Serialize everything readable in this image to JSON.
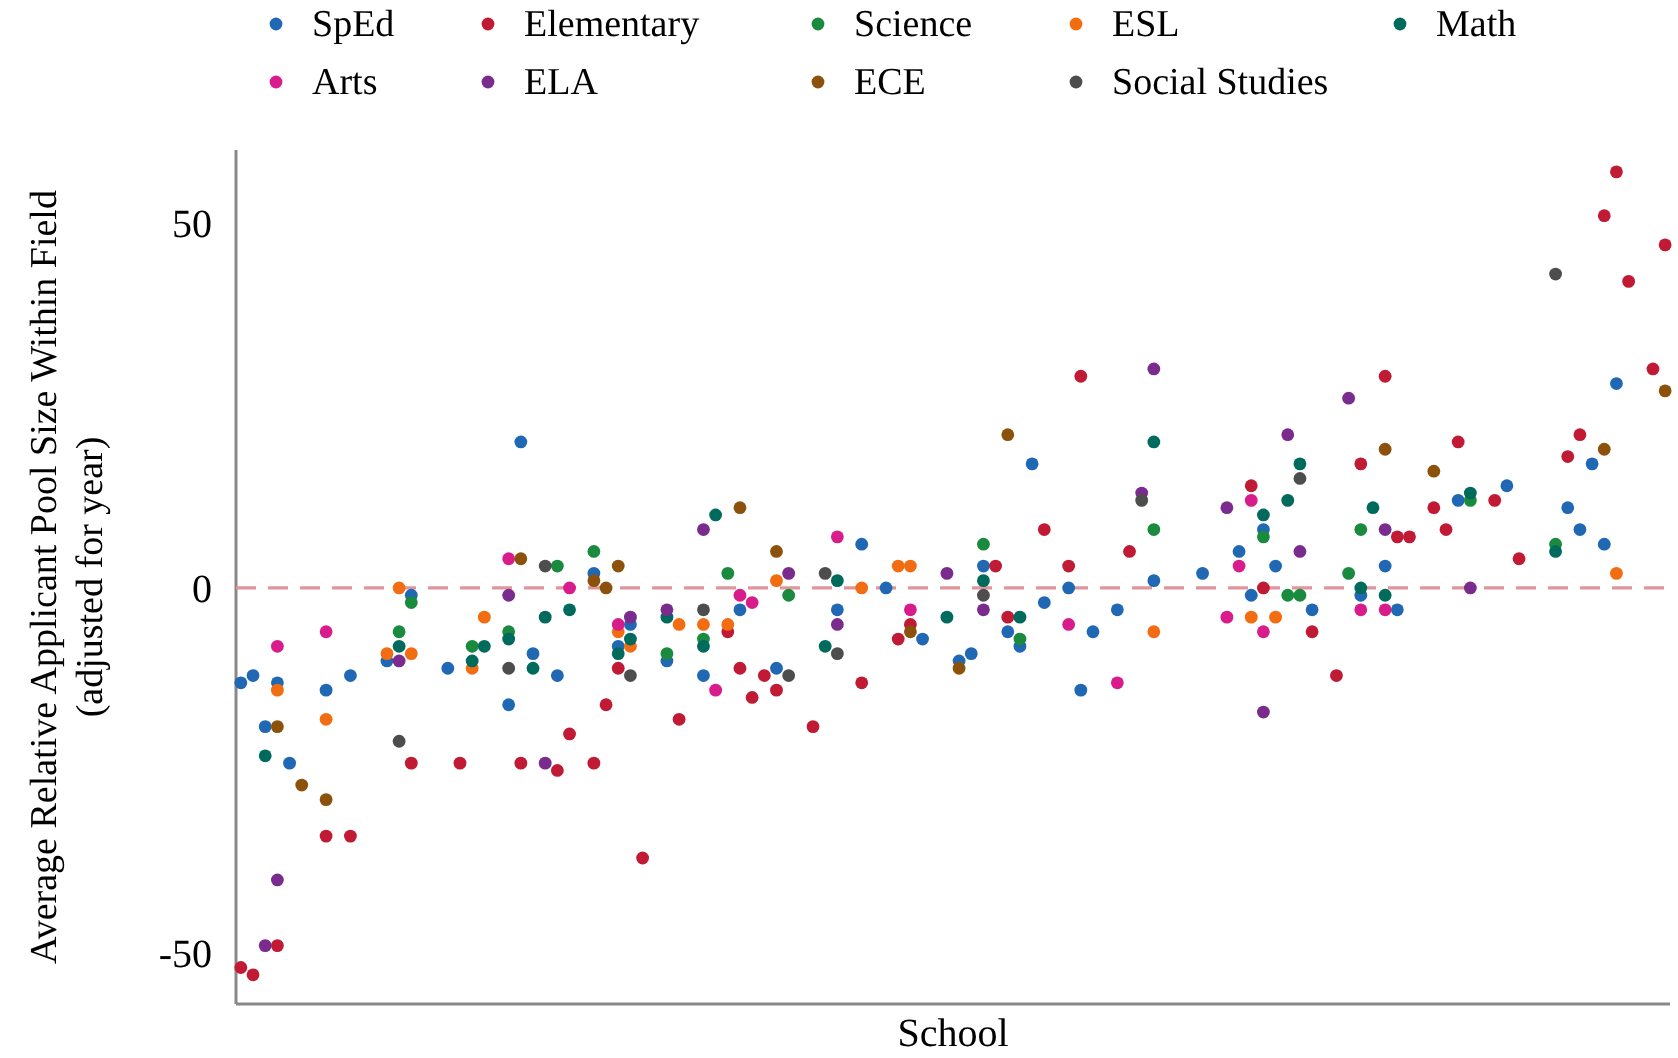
{
  "chart_data": {
    "type": "scatter",
    "xlabel": "School",
    "ylabel": "Average Relative Applicant Pool Size Within Field\n(adjusted for year)",
    "ylim": [
      -57,
      60
    ],
    "yticks": [
      -50,
      0,
      50
    ],
    "tick_labels": "y",
    "legend": "top",
    "marker": "circle",
    "categories": [
      null,
      null,
      null,
      null,
      null,
      null,
      null,
      null,
      null,
      null,
      null,
      null,
      null,
      null,
      null,
      null,
      null,
      null,
      null,
      null,
      null,
      null,
      null,
      null,
      null,
      null,
      null,
      null,
      null,
      null,
      null,
      null,
      null,
      null,
      null,
      null,
      null,
      null,
      null,
      null,
      null,
      null,
      null,
      null,
      null,
      null,
      null,
      null,
      null,
      null,
      null,
      null,
      null,
      null,
      null,
      null,
      null,
      null,
      null,
      null,
      null,
      null,
      null,
      null,
      null,
      null,
      null,
      null,
      null,
      null,
      null,
      null,
      null,
      null,
      null,
      null,
      null,
      null,
      null,
      null,
      null,
      null,
      null,
      null,
      null,
      null,
      null,
      null,
      null,
      null,
      null,
      null,
      null,
      null,
      null,
      null,
      null,
      null,
      null,
      null,
      null,
      null,
      null,
      null,
      null,
      null,
      null,
      null,
      null,
      null,
      null,
      null,
      null,
      null,
      null,
      null,
      null,
      null
    ],
    "ref_lines": [
      {
        "axis": "y",
        "value": 0,
        "color": "#e0959c",
        "line_style": "dashed"
      }
    ],
    "series": [
      {
        "name": "SpEd",
        "color": "#2068b4",
        "values": [
          -13,
          -12,
          -19,
          -13,
          -24,
          null,
          null,
          -14,
          null,
          -12,
          null,
          null,
          -10,
          null,
          -1,
          null,
          null,
          -11,
          null,
          null,
          null,
          null,
          -16,
          20,
          -9,
          null,
          -12,
          null,
          null,
          2,
          null,
          -8,
          -5,
          null,
          null,
          -10,
          null,
          null,
          -12,
          null,
          null,
          -3,
          null,
          null,
          -11,
          null,
          null,
          null,
          null,
          -3,
          null,
          6,
          null,
          0,
          null,
          null,
          -7,
          null,
          null,
          -10,
          -9,
          3,
          null,
          -6,
          -8,
          17,
          -2,
          null,
          0,
          -14,
          -6,
          null,
          -3,
          null,
          null,
          1,
          null,
          null,
          null,
          2,
          null,
          null,
          5,
          -1,
          8,
          3,
          null,
          null,
          -3,
          null,
          null,
          null,
          -1,
          null,
          3,
          -3,
          null,
          null,
          null,
          null,
          12,
          null,
          null,
          null,
          14,
          null,
          null,
          null,
          null,
          11,
          8,
          17,
          6,
          28,
          null,
          null,
          null,
          null
        ]
      },
      {
        "name": "Elementary",
        "color": "#c01a35",
        "values": [
          -52,
          -53,
          null,
          -49,
          null,
          null,
          null,
          -34,
          null,
          -34,
          null,
          null,
          null,
          null,
          -24,
          null,
          null,
          null,
          -24,
          null,
          null,
          null,
          null,
          -24,
          null,
          null,
          -25,
          -20,
          null,
          -24,
          -16,
          -11,
          null,
          -37,
          null,
          null,
          -18,
          null,
          null,
          null,
          -6,
          -11,
          -15,
          -12,
          -14,
          null,
          null,
          -19,
          null,
          null,
          null,
          -13,
          null,
          null,
          -7,
          -5,
          null,
          null,
          null,
          null,
          null,
          null,
          3,
          -4,
          null,
          null,
          8,
          null,
          3,
          29,
          null,
          null,
          null,
          5,
          null,
          null,
          null,
          null,
          null,
          null,
          null,
          null,
          null,
          14,
          0,
          null,
          null,
          null,
          -6,
          null,
          -12,
          null,
          17,
          null,
          29,
          7,
          7,
          null,
          11,
          8,
          20,
          null,
          null,
          12,
          null,
          4,
          null,
          null,
          null,
          18,
          21,
          null,
          51,
          57,
          42,
          null,
          30,
          47
        ]
      },
      {
        "name": "Science",
        "color": "#1a8a3e",
        "values": [
          null,
          null,
          null,
          null,
          null,
          null,
          null,
          null,
          null,
          null,
          null,
          null,
          null,
          -6,
          -2,
          null,
          null,
          null,
          null,
          -8,
          null,
          null,
          -6,
          null,
          null,
          null,
          3,
          null,
          null,
          5,
          null,
          null,
          null,
          null,
          null,
          -9,
          null,
          null,
          -7,
          null,
          2,
          null,
          null,
          null,
          null,
          -1,
          null,
          null,
          null,
          null,
          null,
          null,
          null,
          null,
          null,
          null,
          null,
          null,
          null,
          null,
          null,
          6,
          null,
          null,
          -7,
          null,
          null,
          null,
          null,
          null,
          null,
          null,
          null,
          null,
          null,
          8,
          null,
          null,
          null,
          null,
          null,
          null,
          null,
          null,
          7,
          null,
          -1,
          -1,
          null,
          null,
          null,
          2,
          8,
          null,
          null,
          null,
          null,
          null,
          null,
          null,
          null,
          12,
          null,
          null,
          null,
          null,
          null,
          null,
          6,
          null,
          null,
          null,
          null,
          null,
          null,
          null,
          null,
          null
        ]
      },
      {
        "name": "ESL",
        "color": "#f26c12",
        "values": [
          null,
          null,
          null,
          -14,
          null,
          null,
          null,
          -18,
          null,
          null,
          null,
          null,
          -9,
          0,
          -9,
          null,
          null,
          null,
          null,
          -11,
          -4,
          null,
          null,
          null,
          null,
          null,
          null,
          null,
          null,
          null,
          null,
          -6,
          -8,
          null,
          null,
          null,
          -5,
          null,
          -5,
          null,
          -5,
          null,
          null,
          null,
          1,
          null,
          null,
          null,
          null,
          null,
          null,
          0,
          null,
          null,
          3,
          3,
          null,
          null,
          null,
          null,
          null,
          null,
          null,
          null,
          null,
          null,
          null,
          null,
          null,
          null,
          null,
          null,
          null,
          null,
          null,
          -6,
          null,
          null,
          null,
          null,
          null,
          null,
          null,
          -4,
          null,
          -4,
          null,
          null,
          null,
          null,
          null,
          null,
          null,
          null,
          null,
          null,
          null,
          null,
          null,
          null,
          null,
          null,
          null,
          null,
          null,
          null,
          null,
          null,
          null,
          null,
          null,
          null,
          null,
          2,
          null,
          null,
          null,
          null
        ]
      },
      {
        "name": "Math",
        "color": "#006b5c",
        "values": [
          null,
          null,
          -23,
          null,
          null,
          null,
          null,
          null,
          null,
          null,
          null,
          null,
          null,
          -8,
          null,
          null,
          null,
          null,
          null,
          -10,
          -8,
          null,
          -7,
          null,
          -11,
          -4,
          null,
          -3,
          null,
          null,
          null,
          -9,
          -7,
          null,
          null,
          -4,
          null,
          null,
          -8,
          10,
          null,
          null,
          null,
          null,
          null,
          null,
          null,
          null,
          -8,
          1,
          null,
          null,
          null,
          null,
          null,
          null,
          null,
          null,
          -4,
          null,
          null,
          1,
          null,
          null,
          -4,
          null,
          null,
          null,
          null,
          null,
          null,
          null,
          null,
          null,
          null,
          20,
          null,
          null,
          null,
          null,
          null,
          null,
          null,
          null,
          10,
          null,
          12,
          17,
          null,
          null,
          null,
          null,
          0,
          11,
          -1,
          null,
          null,
          null,
          null,
          null,
          null,
          13,
          null,
          null,
          null,
          null,
          null,
          null,
          5,
          null,
          null,
          null,
          null,
          null,
          null,
          null,
          null,
          null
        ]
      },
      {
        "name": "Arts",
        "color": "#d91c8c",
        "values": [
          null,
          null,
          null,
          -8,
          null,
          null,
          null,
          -6,
          null,
          null,
          null,
          null,
          null,
          null,
          null,
          null,
          null,
          null,
          null,
          null,
          null,
          null,
          4,
          null,
          null,
          null,
          null,
          0,
          null,
          null,
          null,
          -5,
          null,
          null,
          null,
          null,
          null,
          null,
          null,
          -14,
          null,
          -1,
          -2,
          null,
          null,
          null,
          null,
          null,
          null,
          7,
          null,
          null,
          null,
          null,
          null,
          -3,
          null,
          null,
          null,
          null,
          null,
          null,
          null,
          null,
          null,
          null,
          null,
          null,
          -5,
          null,
          null,
          null,
          -13,
          null,
          null,
          null,
          null,
          null,
          null,
          null,
          null,
          -4,
          3,
          12,
          -6,
          null,
          null,
          null,
          null,
          null,
          null,
          null,
          -3,
          null,
          -3,
          null,
          null,
          null,
          null,
          null,
          null,
          null,
          null,
          null,
          null,
          null,
          null,
          null,
          null,
          null,
          null,
          null,
          null,
          null,
          null,
          null,
          null,
          null
        ]
      },
      {
        "name": "ELA",
        "color": "#7a2b8e",
        "values": [
          null,
          null,
          -49,
          -40,
          null,
          null,
          null,
          null,
          null,
          null,
          null,
          null,
          null,
          -10,
          null,
          null,
          null,
          null,
          null,
          null,
          null,
          null,
          -1,
          null,
          null,
          -24,
          null,
          null,
          null,
          null,
          null,
          null,
          -4,
          null,
          null,
          -3,
          null,
          null,
          8,
          null,
          null,
          null,
          null,
          null,
          null,
          2,
          null,
          null,
          null,
          -5,
          null,
          null,
          null,
          null,
          null,
          null,
          null,
          null,
          2,
          null,
          null,
          -3,
          null,
          null,
          null,
          null,
          null,
          null,
          null,
          null,
          null,
          null,
          null,
          null,
          13,
          30,
          null,
          null,
          null,
          null,
          null,
          11,
          null,
          null,
          -17,
          null,
          21,
          5,
          null,
          null,
          null,
          26,
          null,
          null,
          8,
          null,
          null,
          null,
          null,
          null,
          null,
          0,
          null,
          null,
          null,
          null,
          null,
          null,
          null,
          null,
          null,
          null,
          null,
          null,
          null,
          null,
          null,
          null
        ]
      },
      {
        "name": "ECE",
        "color": "#8c520c",
        "values": [
          null,
          null,
          null,
          -19,
          null,
          -27,
          null,
          -29,
          null,
          null,
          null,
          null,
          null,
          null,
          null,
          null,
          null,
          null,
          null,
          null,
          null,
          null,
          null,
          4,
          null,
          null,
          null,
          null,
          null,
          1,
          0,
          3,
          null,
          null,
          null,
          null,
          null,
          null,
          null,
          null,
          null,
          11,
          null,
          null,
          5,
          null,
          null,
          null,
          null,
          null,
          null,
          null,
          null,
          null,
          null,
          -6,
          null,
          null,
          null,
          -11,
          null,
          null,
          null,
          21,
          null,
          null,
          null,
          null,
          null,
          null,
          null,
          null,
          null,
          null,
          null,
          null,
          null,
          null,
          null,
          null,
          null,
          null,
          null,
          null,
          null,
          null,
          null,
          null,
          null,
          null,
          null,
          null,
          null,
          null,
          19,
          null,
          null,
          null,
          16,
          null,
          null,
          null,
          null,
          null,
          null,
          null,
          null,
          null,
          null,
          null,
          null,
          null,
          19,
          null,
          null,
          null,
          null,
          27
        ]
      },
      {
        "name": "Social Studies",
        "color": "#4d4d4d",
        "values": [
          null,
          null,
          null,
          null,
          null,
          null,
          null,
          null,
          null,
          null,
          null,
          null,
          null,
          -21,
          null,
          null,
          null,
          null,
          null,
          null,
          null,
          null,
          -11,
          null,
          null,
          3,
          null,
          null,
          null,
          null,
          null,
          null,
          -12,
          null,
          null,
          null,
          null,
          null,
          -3,
          null,
          null,
          null,
          null,
          null,
          null,
          -12,
          null,
          null,
          2,
          -9,
          null,
          null,
          null,
          null,
          null,
          null,
          null,
          null,
          null,
          null,
          null,
          -1,
          null,
          null,
          null,
          null,
          null,
          null,
          null,
          null,
          null,
          null,
          null,
          null,
          12,
          null,
          null,
          null,
          null,
          null,
          null,
          null,
          null,
          null,
          null,
          null,
          null,
          15,
          null,
          null,
          null,
          null,
          null,
          null,
          null,
          null,
          null,
          null,
          null,
          null,
          null,
          null,
          null,
          null,
          null,
          null,
          null,
          null,
          43,
          null,
          null,
          null,
          null,
          null,
          null,
          null,
          null,
          null
        ]
      }
    ]
  }
}
